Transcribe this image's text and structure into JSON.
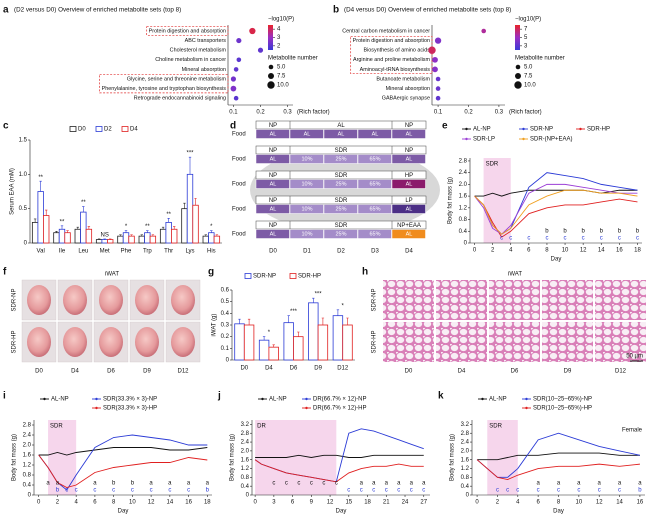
{
  "chart_data": [
    {
      "type": "dot",
      "label": "a",
      "title": "(D2 versus D0) Overview of enriched metabolite sets (top 8)",
      "categories": [
        "Protein digestion and absorption",
        "ABC transporters",
        "Cholesterol metabolism",
        "Choline metabolism in cancer",
        "Mineral absorption",
        "Glycine, serine and threonine metabolism",
        "Phenylalanine, tyrosine and tryptophan biosynthesis",
        "Retrograde endocannabinoid signaling"
      ],
      "highlighted": [
        true,
        false,
        false,
        false,
        false,
        true,
        true,
        false
      ],
      "values": [
        0.17,
        0.12,
        0.2,
        0.12,
        0.11,
        0.1,
        0.1,
        0.11
      ],
      "neglogp": [
        4.2,
        2.3,
        2.1,
        2.0,
        2.1,
        2.4,
        2.6,
        2.0
      ],
      "sizes": [
        8,
        6,
        6,
        5,
        5,
        6,
        7,
        5
      ],
      "xlabel": "(Rich factor)",
      "xlim": [
        0.08,
        0.32
      ],
      "xticks": [
        0.1,
        0.2,
        0.3
      ],
      "color_title": "−log10(P)",
      "color_lim": [
        1.5,
        4.5
      ],
      "color_ticks": [
        4,
        3,
        2
      ],
      "cmap": [
        "#3a3ad6",
        "#9a2fc4",
        "#e8242a"
      ],
      "size_title": "Metabolite number",
      "size_ticks": [
        {
          "value": 5,
          "label": "5.0"
        },
        7.5,
        {
          "value": 10,
          "label": "10.0"
        }
      ]
    },
    {
      "type": "dot",
      "label": "b",
      "title": "(D4 versus D0) Overview of enriched metabolite sets (top 8)",
      "categories": [
        "Central carbon metabolism in cancer",
        "Protein digestion and absorption",
        "Biosynthesis of amino acids",
        "Arginine and proline metabolism",
        "Aminoacyl-tRNA biosynthesis",
        "Butanoate metabolism",
        "Mineral absorption",
        "GABAergic synapse"
      ],
      "highlighted": [
        false,
        true,
        true,
        true,
        true,
        false,
        false,
        false
      ],
      "values": [
        0.25,
        0.1,
        0.08,
        0.09,
        0.09,
        0.1,
        0.1,
        0.1
      ],
      "neglogp": [
        5.8,
        4.2,
        7.0,
        4.6,
        4.4,
        3.4,
        3.5,
        3.2
      ],
      "sizes": [
        5,
        8,
        10,
        7,
        7,
        5,
        5,
        5
      ],
      "xlabel": "(Rich factor)",
      "xlim": [
        0.08,
        0.32
      ],
      "xticks": [
        0.1,
        0.2,
        0.3
      ],
      "color_title": "−log10(P)",
      "color_lim": [
        2,
        8
      ],
      "color_ticks": [
        7,
        5,
        3
      ],
      "cmap": [
        "#3a3ad6",
        "#9a2fc4",
        "#e8242a"
      ],
      "size_title": "Metabolite number",
      "size_ticks": [
        {
          "value": 5,
          "label": "5.0"
        },
        7.5,
        {
          "value": 10,
          "label": "10.0"
        }
      ]
    },
    {
      "type": "bar",
      "label": "c",
      "ylabel": "Serum EAA (mM)",
      "categories": [
        "Val",
        "Ile",
        "Leu",
        "Met",
        "Phe",
        "Trp",
        "Thr",
        "Lys",
        "His"
      ],
      "series": [
        {
          "name": "D0",
          "color": "#222222",
          "values": [
            0.3,
            0.15,
            0.2,
            0.05,
            0.1,
            0.1,
            0.2,
            0.5,
            0.1
          ],
          "errors": [
            0.05,
            0.02,
            0.03,
            0.01,
            0.02,
            0.02,
            0.03,
            0.08,
            0.02
          ]
        },
        {
          "name": "D2",
          "color": "#2b3bd6",
          "values": [
            0.75,
            0.2,
            0.45,
            0.05,
            0.15,
            0.15,
            0.3,
            1.0,
            0.15
          ],
          "errors": [
            0.15,
            0.05,
            0.08,
            0.01,
            0.03,
            0.03,
            0.06,
            0.25,
            0.03
          ]
        },
        {
          "name": "D4",
          "color": "#e02020",
          "values": [
            0.4,
            0.15,
            0.2,
            0.05,
            0.1,
            0.1,
            0.2,
            0.55,
            0.1
          ],
          "errors": [
            0.08,
            0.03,
            0.04,
            0.01,
            0.02,
            0.02,
            0.04,
            0.1,
            0.02
          ]
        }
      ],
      "significance": [
        "**",
        "**",
        "**",
        "NS",
        "*",
        "**",
        "**",
        "***",
        "*"
      ],
      "ylim": [
        0,
        1.5
      ],
      "yticks": [
        0,
        0.5,
        {
          "value": 1,
          "label": "1.0"
        },
        1.5
      ]
    },
    {
      "type": "line",
      "label": "e",
      "xlabel": "Day",
      "ylabel": "Body fat mass (g)",
      "x": [
        0,
        1,
        2,
        3,
        4,
        6,
        8,
        10,
        12,
        14,
        16,
        18
      ],
      "series": [
        {
          "name": "AL-NP",
          "color": "#111111",
          "values": [
            1.6,
            1.6,
            1.7,
            1.6,
            1.7,
            1.8,
            1.8,
            1.8,
            1.8,
            1.7,
            1.8,
            1.8
          ]
        },
        {
          "name": "SDR-NP",
          "color": "#2b3bd6",
          "values": [
            1.6,
            1.3,
            0.6,
            0.3,
            0.5,
            1.9,
            2.4,
            2.3,
            2.2,
            2.0,
            1.9,
            1.8
          ]
        },
        {
          "name": "SDR-HP",
          "color": "#e02020",
          "values": [
            1.6,
            1.3,
            0.7,
            0.2,
            0.4,
            1.0,
            1.2,
            1.3,
            1.3,
            1.4,
            1.5,
            1.4
          ]
        },
        {
          "name": "SDR-LP",
          "color": "#9b3fd6",
          "values": [
            1.6,
            1.2,
            0.5,
            0.3,
            0.6,
            1.7,
            2.0,
            2.0,
            1.9,
            1.8,
            1.7,
            1.7
          ]
        },
        {
          "name": "SDR-(NP+EAA)",
          "color": "#f0a020",
          "values": [
            1.6,
            1.3,
            0.6,
            0.3,
            0.5,
            1.3,
            1.6,
            1.8,
            1.8,
            1.7,
            1.7,
            1.6
          ]
        }
      ],
      "letters": [
        {
          "color": "#111111",
          "labels": [
            null,
            null,
            null,
            null,
            null,
            null,
            "b",
            "b",
            "b",
            "b",
            "b",
            "b"
          ]
        },
        {
          "color": "#2b3bd6",
          "labels": [
            null,
            null,
            null,
            "c",
            "c",
            "c",
            "c",
            "c",
            "c",
            "c",
            "c",
            "c"
          ]
        }
      ],
      "shade_label": "SDR",
      "shade_x": [
        1,
        4
      ],
      "xlim": [
        -0.5,
        18.5
      ],
      "xticks": [
        0,
        2,
        4,
        6,
        8,
        10,
        12,
        14,
        16,
        18
      ],
      "ylim": [
        0,
        2.9
      ],
      "yticks": [
        0,
        0.4,
        0.8,
        1.2,
        1.6,
        {
          "value": 2,
          "label": "2.0"
        },
        2.4,
        2.8
      ]
    },
    {
      "type": "bar",
      "label": "g",
      "ylabel": "iWAT (g)",
      "categories": [
        "D0",
        "D4",
        "D6",
        "D9",
        "D12"
      ],
      "series": [
        {
          "name": "SDR-NP",
          "color": "#2b3bd6",
          "values": [
            0.31,
            0.17,
            0.32,
            0.49,
            0.38
          ],
          "errors": [
            0.04,
            0.03,
            0.06,
            0.04,
            0.05
          ]
        },
        {
          "name": "SDR-HP",
          "color": "#e02020",
          "values": [
            0.3,
            0.11,
            0.2,
            0.3,
            0.3
          ],
          "errors": [
            0.05,
            0.02,
            0.04,
            0.06,
            0.06
          ]
        }
      ],
      "significance": [
        null,
        "*",
        "***",
        "***",
        "*"
      ],
      "ylim": [
        0,
        0.6
      ],
      "yticks": [
        0,
        0.1,
        0.2,
        0.3,
        0.4,
        0.5,
        0.6
      ]
    },
    {
      "type": "line",
      "label": "i",
      "xlabel": "Day",
      "ylabel": "Body fat mass (g)",
      "x": [
        0,
        1,
        2,
        3,
        4,
        6,
        8,
        10,
        12,
        14,
        16,
        18
      ],
      "series": [
        {
          "name": "AL-NP",
          "color": "#111111",
          "values": [
            1.6,
            1.6,
            1.7,
            1.6,
            1.7,
            1.8,
            1.9,
            1.9,
            1.9,
            1.8,
            1.8,
            1.9
          ]
        },
        {
          "name": "SDR(33.3% × 3)-NP",
          "color": "#2b3bd6",
          "values": [
            1.6,
            1.1,
            0.5,
            0.2,
            0.8,
            1.9,
            2.3,
            2.4,
            2.3,
            2.2,
            2.0,
            2.0
          ]
        },
        {
          "name": "SDR(33.3% × 3)-HP",
          "color": "#e02020",
          "values": [
            1.6,
            1.1,
            0.5,
            0.3,
            0.4,
            0.9,
            1.1,
            1.2,
            1.3,
            1.3,
            1.5,
            1.4
          ]
        }
      ],
      "letters": [
        {
          "color": "#111111",
          "labels": [
            null,
            "a",
            "a",
            null,
            null,
            "a",
            "b",
            "b",
            "a",
            "a",
            "a",
            "a"
          ]
        },
        {
          "color": "#2b3bd6",
          "labels": [
            null,
            null,
            "b",
            "c",
            "c",
            "c",
            "c",
            "c",
            "c",
            "c",
            "c",
            "b"
          ]
        }
      ],
      "shade_label": "SDR",
      "shade_x": [
        1,
        4
      ],
      "xlim": [
        -0.5,
        18.5
      ],
      "xticks": [
        0,
        2,
        4,
        6,
        8,
        10,
        12,
        14,
        16,
        18
      ],
      "ylim": [
        0,
        3
      ],
      "yticks": [
        0,
        0.4,
        0.8,
        1.2,
        1.6,
        {
          "value": 2,
          "label": "2.0"
        },
        2.4,
        2.8
      ]
    },
    {
      "type": "line",
      "label": "j",
      "xlabel": "Day",
      "ylabel": "Body fat mass (g)",
      "x": [
        0,
        1,
        3,
        5,
        7,
        9,
        11,
        13,
        15,
        17,
        19,
        21,
        23,
        25,
        27
      ],
      "series": [
        {
          "name": "AL-NP",
          "color": "#111111",
          "values": [
            1.7,
            1.7,
            1.7,
            1.7,
            1.8,
            1.7,
            1.8,
            1.8,
            1.7,
            1.7,
            1.8,
            1.8,
            1.8,
            1.8,
            1.8
          ]
        },
        {
          "name": "DR(66.7% × 12)-NP",
          "color": "#2b3bd6",
          "values": [
            1.6,
            1.4,
            1.2,
            1.0,
            0.9,
            0.8,
            0.7,
            0.6,
            2.8,
            3.0,
            2.9,
            2.7,
            2.5,
            2.3,
            2.1
          ]
        },
        {
          "name": "DR(66.7% × 12)-HP",
          "color": "#e02020",
          "values": [
            1.6,
            1.4,
            1.2,
            1.0,
            0.9,
            0.8,
            0.7,
            0.6,
            1.0,
            1.2,
            1.3,
            1.3,
            1.4,
            1.3,
            1.3
          ]
        }
      ],
      "letters": [
        {
          "color": "#111111",
          "labels": [
            null,
            null,
            "c",
            "c",
            "c",
            "c",
            "c",
            "c",
            null,
            "a",
            "a",
            "a",
            "a",
            "a",
            "a"
          ]
        },
        {
          "color": "#2b3bd6",
          "labels": [
            null,
            null,
            null,
            null,
            null,
            null,
            null,
            null,
            "c",
            "c",
            "c",
            "c",
            "c",
            "c",
            "c"
          ]
        }
      ],
      "shade_label": "DR",
      "shade_x": [
        0,
        13
      ],
      "xlim": [
        -0.5,
        28
      ],
      "xticks": [
        0,
        3,
        6,
        9,
        12,
        15,
        18,
        21,
        24,
        27
      ],
      "ylim": [
        0,
        3.4
      ],
      "yticks": [
        0,
        0.4,
        0.8,
        1.2,
        1.6,
        {
          "value": 2,
          "label": "2.0"
        },
        2.4,
        2.8,
        3.2
      ]
    },
    {
      "type": "line",
      "label": "k",
      "xlabel": "Day",
      "ylabel": "Body fat mass (g)",
      "note": "Female",
      "x": [
        0,
        1,
        2,
        3,
        4,
        6,
        8,
        10,
        12,
        14,
        16
      ],
      "series": [
        {
          "name": "AL-NP",
          "color": "#111111",
          "values": [
            1.6,
            1.6,
            1.6,
            1.7,
            1.8,
            1.8,
            1.9,
            1.9,
            1.9,
            1.8,
            1.8
          ]
        },
        {
          "name": "SDR(10–25–65%)-NP",
          "color": "#2b3bd6",
          "values": [
            1.6,
            1.2,
            0.8,
            0.8,
            1.2,
            2.5,
            2.8,
            2.5,
            2.2,
            2.0,
            1.8
          ]
        },
        {
          "name": "SDR(10–25–65%)-HP",
          "color": "#e02020",
          "values": [
            1.6,
            1.2,
            0.8,
            0.7,
            0.9,
            1.2,
            1.3,
            1.3,
            1.4,
            1.3,
            1.4
          ]
        }
      ],
      "letters": [
        {
          "color": "#111111",
          "labels": [
            null,
            null,
            null,
            null,
            null,
            "a",
            "a",
            "a",
            "a",
            "a",
            "a"
          ]
        },
        {
          "color": "#2b3bd6",
          "labels": [
            null,
            null,
            "c",
            "c",
            "c",
            "c",
            "c",
            "c",
            "c",
            "c",
            "b"
          ]
        }
      ],
      "shade_label": "SDR",
      "shade_x": [
        1,
        4
      ],
      "xlim": [
        -0.5,
        16.5
      ],
      "xticks": [
        0,
        2,
        4,
        6,
        8,
        10,
        12,
        14,
        16
      ],
      "ylim": [
        0,
        3.4
      ],
      "yticks": [
        0,
        0.4,
        0.8,
        1.2,
        1.6,
        {
          "value": 2,
          "label": "2.0"
        },
        2.4,
        2.8,
        3.2
      ]
    }
  ],
  "panel_d": {
    "label": "d",
    "row_title": "Food",
    "cell_color": "#7d5ba6",
    "rows": [
      {
        "plan": [
          "NP",
          "AL",
          "NP"
        ],
        "food": [
          "AL",
          "AL",
          "AL",
          "AL",
          "AL"
        ],
        "mid_color": "#7d5ba6",
        "accent": "#7d5ba6"
      },
      {
        "plan": [
          "NP",
          "SDR",
          "NP"
        ],
        "food": [
          "AL",
          "10%",
          "25%",
          "65%",
          "AL"
        ],
        "mid_color": "#a48cc9",
        "accent": "#7d5ba6"
      },
      {
        "plan": [
          "NP",
          "SDR",
          "HP"
        ],
        "food": [
          "AL",
          "10%",
          "25%",
          "65%",
          "AL"
        ],
        "mid_color": "#a48cc9",
        "accent": "#8b1a6b"
      },
      {
        "plan": [
          "NP",
          "SDR",
          "LP"
        ],
        "food": [
          "AL",
          "10%",
          "25%",
          "65%",
          "AL"
        ],
        "mid_color": "#a48cc9",
        "accent": "#4c2f86"
      },
      {
        "plan": [
          "NP",
          "SDR",
          "NP+EAA"
        ],
        "food": [
          "AL",
          "10%",
          "25%",
          "65%",
          "AL"
        ],
        "mid_color": "#a48cc9",
        "accent": "#f08c1e"
      }
    ],
    "days": [
      "D0",
      "D1",
      "D2",
      "D3",
      "D4"
    ]
  },
  "panel_f": {
    "label": "f",
    "title": "iWAT",
    "rows": [
      "SDR-NP",
      "SDR-HP"
    ],
    "cols": [
      "D0",
      "D4",
      "D6",
      "D9",
      "D12"
    ]
  },
  "panel_h": {
    "label": "h",
    "title": "iWAT",
    "rows": [
      "SDR-NP",
      "SDR-HP"
    ],
    "cols": [
      "D0",
      "D4",
      "D6",
      "D9",
      "D12"
    ],
    "scale": "50 µm"
  }
}
